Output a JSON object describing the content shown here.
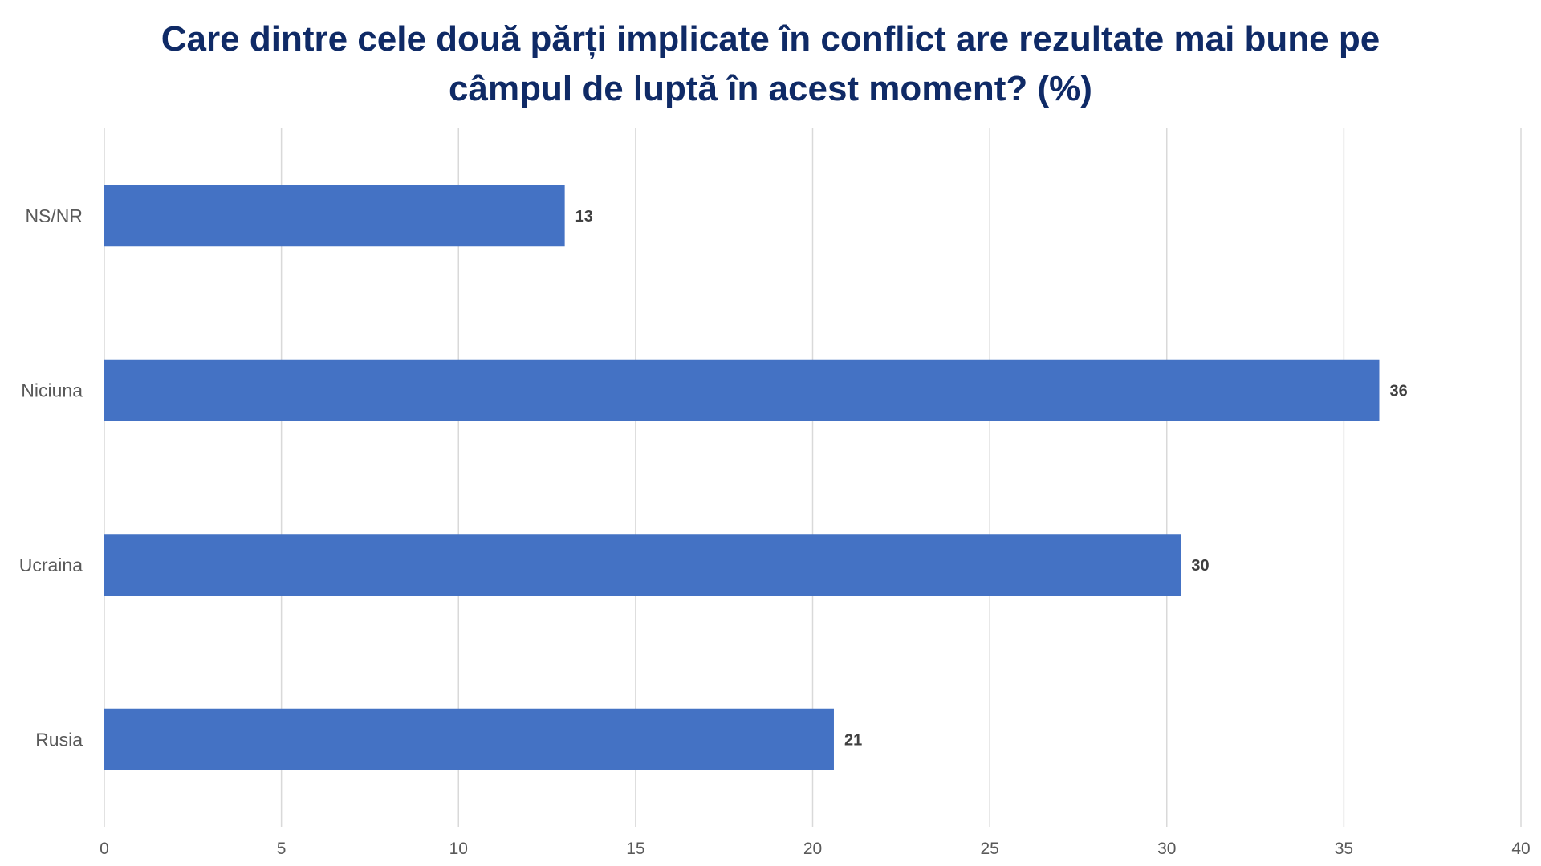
{
  "chart_data": {
    "type": "bar",
    "orientation": "horizontal",
    "title_lines": [
      "Care dintre cele două părți implicate în conflict are rezultate mai bune pe",
      "câmpul de luptă în acest moment? (%)"
    ],
    "categories": [
      "NS/NR",
      "Niciuna",
      "Ucraina",
      "Rusia"
    ],
    "values": [
      13,
      36,
      30.4,
      20.6
    ],
    "data_labels": [
      "13",
      "36",
      "30",
      "21"
    ],
    "xlim": [
      0,
      40
    ],
    "x_ticks": [
      "0",
      "5",
      "10",
      "15",
      "20",
      "25",
      "30",
      "35",
      "40"
    ],
    "grid": "vertical",
    "bar_color": "#4472c4",
    "grid_color": "#d9d9d9",
    "title_color": "#0f2a66",
    "xlabel": "",
    "ylabel": ""
  }
}
